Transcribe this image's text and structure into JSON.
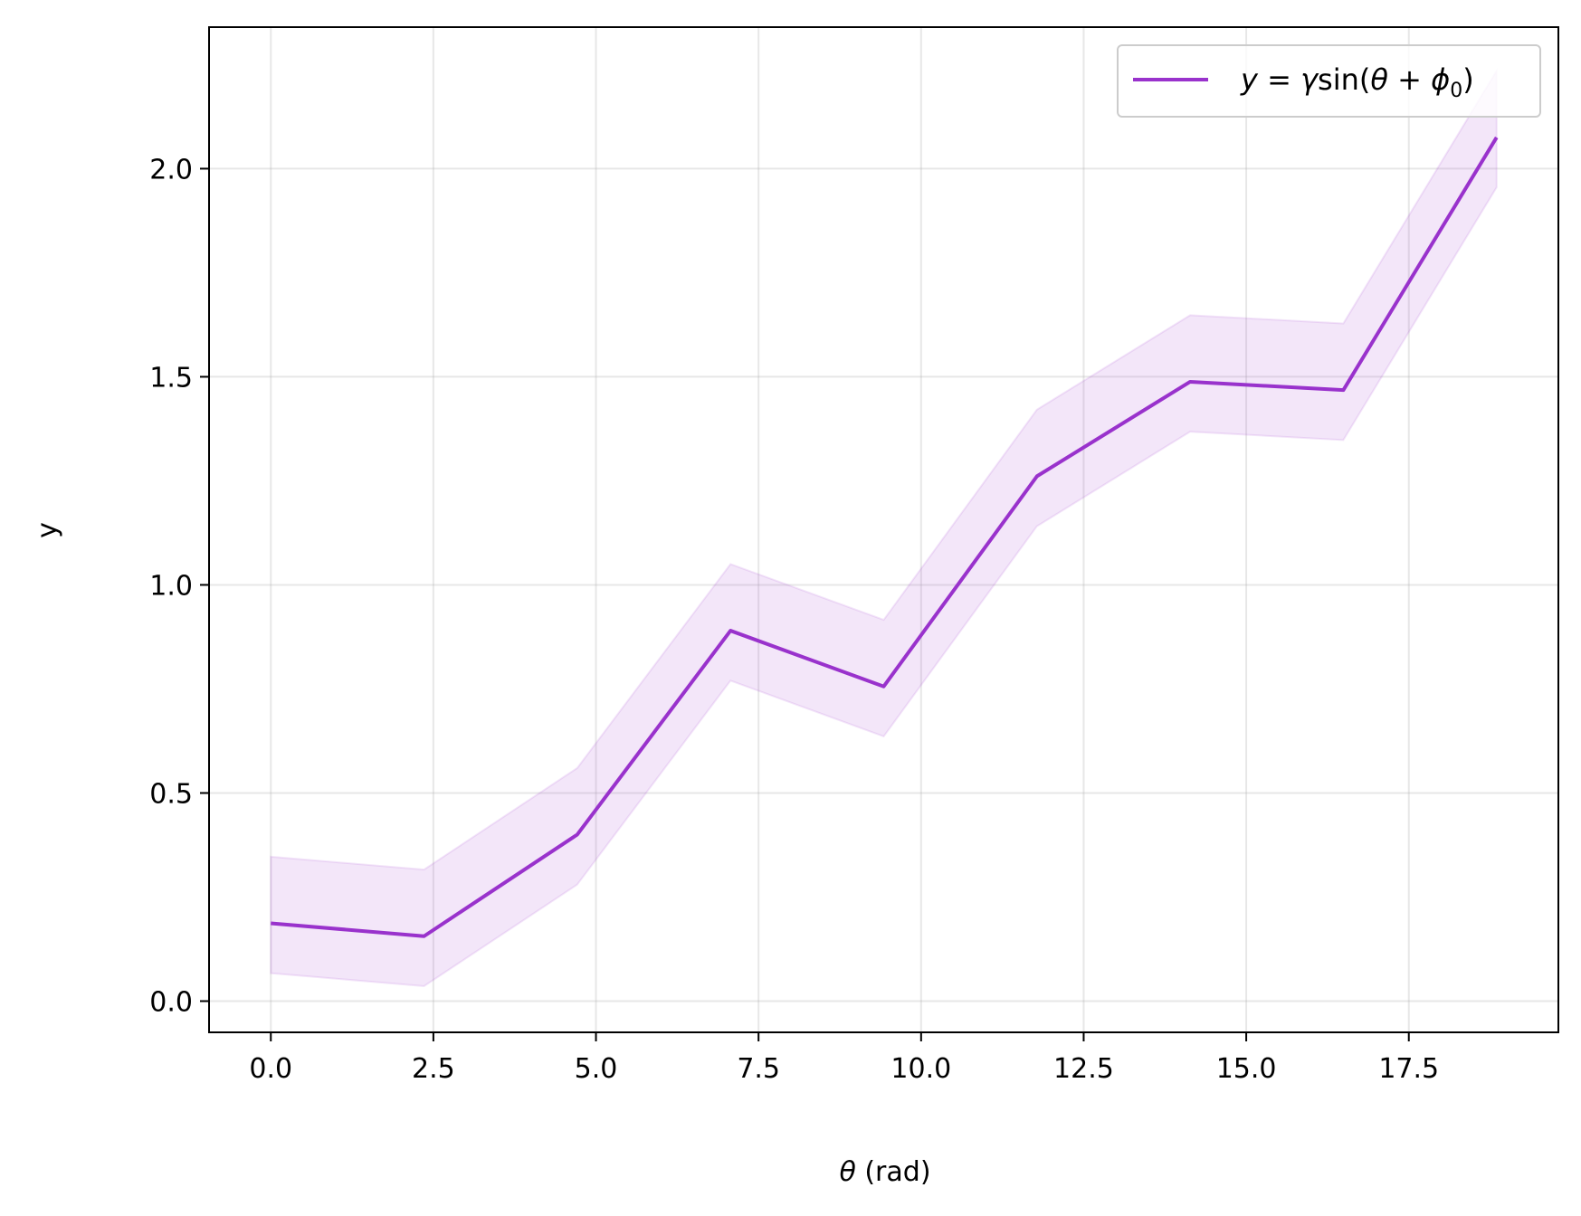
{
  "chart_data": {
    "type": "line",
    "xlabel_symbol": "θ",
    "xlabel_unit": " (rad)",
    "ylabel": "y",
    "xlim": [
      -0.95,
      19.8
    ],
    "ylim": [
      -0.075,
      2.34
    ],
    "xticks": [
      0.0,
      2.5,
      5.0,
      7.5,
      10.0,
      12.5,
      15.0,
      17.5
    ],
    "xtick_labels": [
      "0.0",
      "2.5",
      "5.0",
      "7.5",
      "10.0",
      "12.5",
      "15.0",
      "17.5"
    ],
    "yticks": [
      0.0,
      0.5,
      1.0,
      1.5,
      2.0
    ],
    "ytick_labels": [
      "0.0",
      "0.5",
      "1.0",
      "1.5",
      "2.0"
    ],
    "grid": true,
    "legend_position": "top-right",
    "legend": {
      "y": "y",
      "eq": " = ",
      "gamma": "γ",
      "sin": "sin(",
      "theta": "θ",
      "plus": " + ",
      "phi": "ϕ",
      "sub": "0",
      "close": ")"
    },
    "series": [
      {
        "color": "#9932CC",
        "x": [
          0.0,
          2.356,
          4.712,
          7.069,
          9.425,
          11.781,
          14.137,
          16.493,
          18.85
        ],
        "values": [
          0.187,
          0.156,
          0.4,
          0.89,
          0.756,
          1.261,
          1.488,
          1.468,
          2.075
        ],
        "band_lower": [
          0.067,
          0.036,
          0.28,
          0.77,
          0.636,
          1.141,
          1.368,
          1.348,
          1.955
        ],
        "band_upper": [
          0.347,
          0.316,
          0.56,
          1.05,
          0.916,
          1.421,
          1.648,
          1.628,
          2.235
        ]
      }
    ]
  }
}
